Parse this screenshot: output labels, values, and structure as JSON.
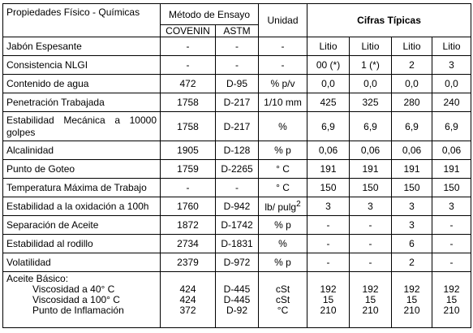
{
  "header": {
    "property": "Propiedades  Físico - Químicas",
    "method": "Método de Ensayo",
    "unit": "Unidad",
    "figures": "Cifras Típicas",
    "covenin": "COVENIN",
    "astm": "ASTM"
  },
  "table": {
    "rows": [
      [
        "Jabón Espesante",
        "-",
        "-",
        "-",
        "Litio",
        "Litio",
        "Litio",
        "Litio"
      ],
      [
        "Consistencia NLGI",
        "-",
        "-",
        "-",
        "00 (*)",
        "1 (*)",
        "2",
        "3"
      ],
      [
        "Contenido de agua",
        "472",
        "D-95",
        "% p/v",
        "0,0",
        "0,0",
        "0,0",
        "0,0"
      ],
      [
        "Penetración Trabajada",
        "1758",
        "D-217",
        "1/10 mm",
        "425",
        "325",
        "280",
        "240"
      ],
      [
        "Estabilidad Mecánica a 10000 golpes",
        "1758",
        "D-217",
        "%",
        "6,9",
        "6,9",
        "6,9",
        "6,9"
      ],
      [
        "Alcalinidad",
        "1905",
        "D-128",
        "% p",
        "0,06",
        "0,06",
        "0,06",
        "0,06"
      ],
      [
        "Punto de Goteo",
        "1759",
        "D-2265",
        "° C",
        "191",
        "191",
        "191",
        "191"
      ],
      [
        "Temperatura Máxima de Trabajo",
        "-",
        "-",
        "° C",
        "150",
        "150",
        "150",
        "150"
      ],
      [
        "Estabilidad a la oxidación a 100h",
        "1760",
        "D-942",
        {
          "text": "lb/ pulg",
          "sup": "2"
        },
        "3",
        "3",
        "3",
        "3"
      ],
      [
        "Separación de Aceite",
        "1872",
        "D-1742",
        "% p",
        "-",
        "-",
        "3",
        "-"
      ],
      [
        "Estabilidad al rodillo",
        "2734",
        "D-1831",
        "%",
        "-",
        "-",
        "6",
        "-"
      ],
      [
        "Volatilidad",
        "2379",
        "D-972",
        "% p",
        "-",
        "-",
        "2",
        "-"
      ]
    ],
    "base_oil": {
      "title": "Aceite Básico:",
      "rows": [
        [
          "Viscosidad a 40° C",
          "424",
          "D-445",
          "cSt",
          "192",
          "192",
          "192",
          "192"
        ],
        [
          "Viscosidad a 100° C",
          "424",
          "D-445",
          "cSt",
          "15",
          "15",
          "15",
          "15"
        ],
        [
          "Punto de Inflamación",
          "372",
          "D-92",
          "°C",
          "210",
          "210",
          "210",
          "210"
        ]
      ]
    }
  }
}
